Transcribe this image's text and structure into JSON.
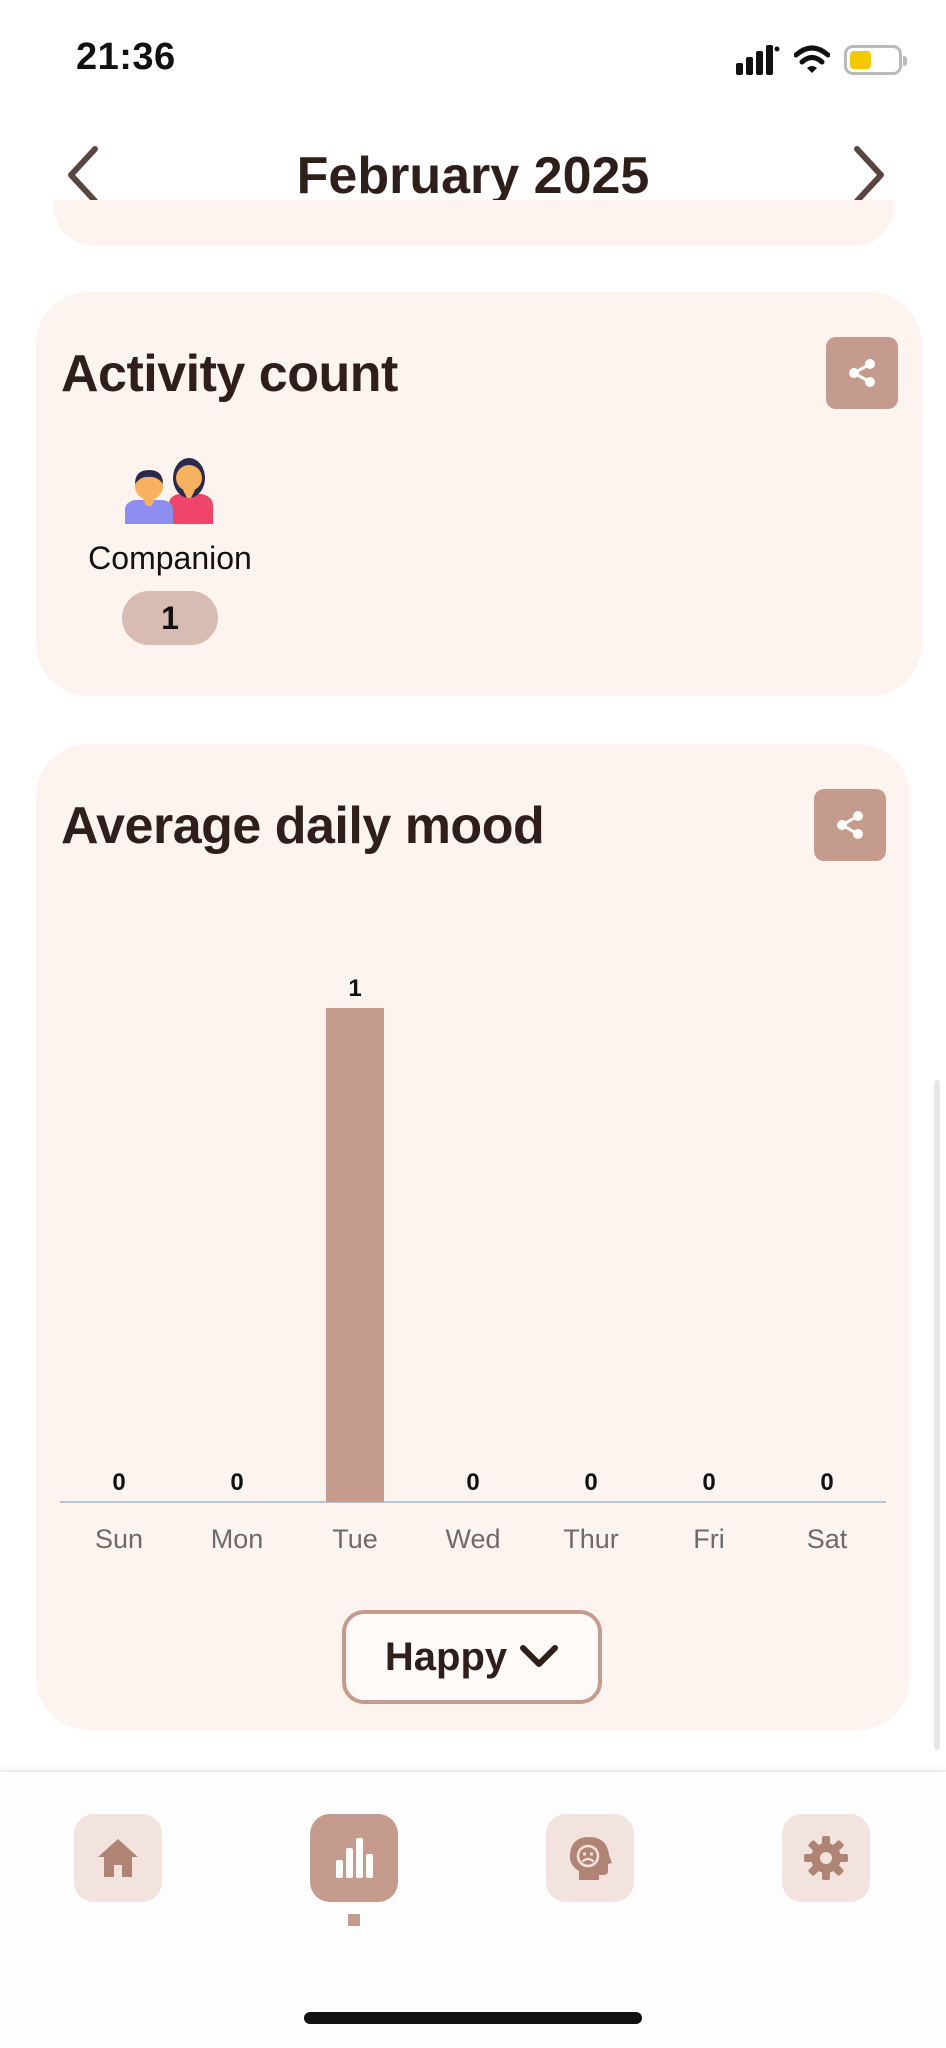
{
  "status_bar": {
    "time": "21:36",
    "battery_level": 0.45
  },
  "header": {
    "month_title": "February 2025",
    "prev_icon": "chevron-left-icon",
    "next_icon": "chevron-right-icon"
  },
  "activity_card": {
    "title": "Activity count",
    "share_icon": "share-icon",
    "items": [
      {
        "label": "Companion",
        "count": "1",
        "icon": "companion-icon"
      }
    ]
  },
  "mood_card": {
    "title": "Average daily mood",
    "share_icon": "share-icon",
    "selected_mood": "Happy"
  },
  "chart_data": {
    "type": "bar",
    "categories": [
      "Sun",
      "Mon",
      "Tue",
      "Wed",
      "Thur",
      "Fri",
      "Sat"
    ],
    "values": [
      0,
      0,
      1,
      0,
      0,
      0,
      0
    ],
    "data_labels": [
      "0",
      "0",
      "1",
      "0",
      "0",
      "0",
      "0"
    ],
    "title": "Average daily mood",
    "ylim": [
      0,
      1
    ],
    "grid": false,
    "bar_color": "#c49b8c"
  },
  "bottom_nav": {
    "items": [
      {
        "name": "home",
        "icon": "home-icon",
        "active": false
      },
      {
        "name": "stats",
        "icon": "bar-chart-icon",
        "active": true
      },
      {
        "name": "mind",
        "icon": "sad-head-icon",
        "active": false
      },
      {
        "name": "settings",
        "icon": "gear-icon",
        "active": false
      }
    ]
  },
  "colors": {
    "accent": "#c49b8c",
    "card_bg": "#fdf3ef",
    "text": "#2e1f1b",
    "pill_bg": "#d8bcb3",
    "nav_bg": "#f3e3de"
  }
}
